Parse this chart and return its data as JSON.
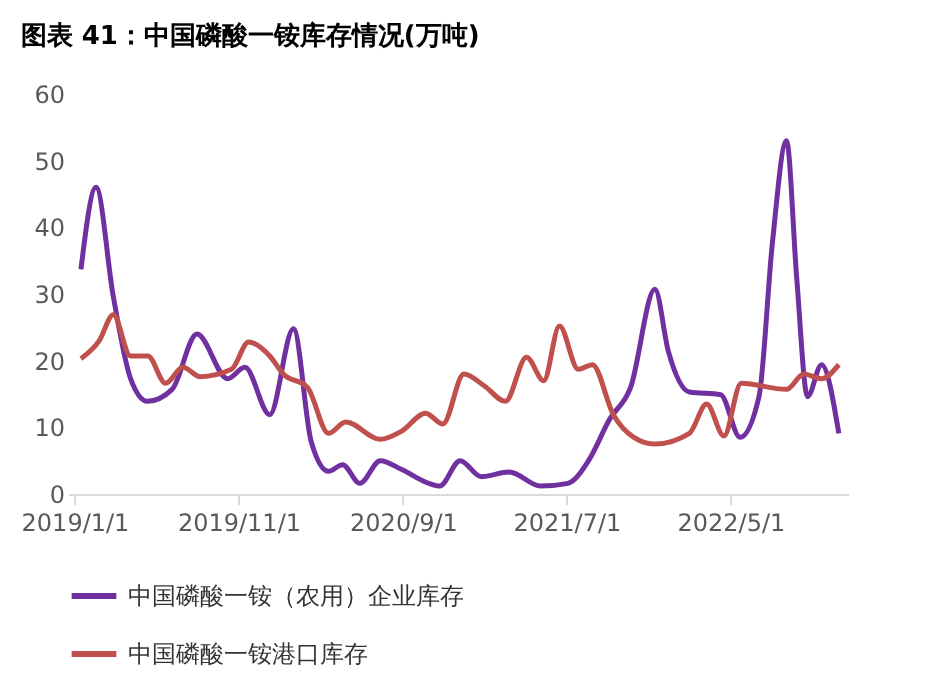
{
  "chart_data": {
    "type": "line",
    "title": "图表 41：中国磷酸一铵库存情况(万吨)",
    "xlim": [
      "2018-12-20",
      "2022-12-05"
    ],
    "xticks": [
      {
        "value": "2019-01-01",
        "label": "2019/1/1"
      },
      {
        "value": "2019-11-01",
        "label": "2019/11/1"
      },
      {
        "value": "2020-09-01",
        "label": "2020/9/1"
      },
      {
        "value": "2021-07-01",
        "label": "2021/7/1"
      },
      {
        "value": "2022-05-01",
        "label": "2022/5/1"
      }
    ],
    "ylim": [
      0,
      60
    ],
    "yticks": [
      0,
      10,
      20,
      30,
      40,
      50,
      60
    ],
    "grid": false,
    "legend": "bottom",
    "line_style": "solid",
    "series": [
      {
        "name": "中国磷酸一铵（农用）企业库存",
        "color": "#7030a0",
        "x": [
          "2019-01-13",
          "2019-02-10",
          "2019-03-14",
          "2019-04-15",
          "2019-05-16",
          "2019-07-01",
          "2019-08-16",
          "2019-10-12",
          "2019-11-13",
          "2019-12-29",
          "2020-02-11",
          "2020-03-15",
          "2020-04-16",
          "2020-05-12",
          "2020-06-13",
          "2020-07-21",
          "2020-08-29",
          "2020-10-19",
          "2020-11-08",
          "2020-12-16",
          "2021-01-24",
          "2021-03-17",
          "2021-05-14",
          "2021-07-04",
          "2021-08-11",
          "2021-09-19",
          "2021-10-28",
          "2021-12-12",
          "2022-01-06",
          "2022-02-14",
          "2022-04-13",
          "2022-05-19",
          "2022-06-23",
          "2022-07-18",
          "2022-08-13",
          "2022-09-01",
          "2022-09-21",
          "2022-10-17",
          "2022-11-18"
        ],
        "values": [
          33.7,
          46,
          29.6,
          17.3,
          13.9,
          15.7,
          24,
          17.3,
          19,
          11.9,
          24.8,
          7.8,
          3.4,
          4.4,
          1.6,
          5,
          3.7,
          1.6,
          1.2,
          5,
          2.6,
          3.3,
          1.2,
          1.6,
          5,
          11.2,
          16,
          30.7,
          21.4,
          15.3,
          14.9,
          8.5,
          14.6,
          37.8,
          53,
          32.3,
          14.6,
          19.4,
          9.1
        ]
      },
      {
        "name": "中国磷酸一铵港口库存",
        "color": "#c0504d",
        "x": [
          "2019-01-13",
          "2019-02-16",
          "2019-03-14",
          "2019-04-15",
          "2019-05-17",
          "2019-06-19",
          "2019-07-21",
          "2019-08-22",
          "2019-10-19",
          "2019-11-20",
          "2019-12-29",
          "2020-01-23",
          "2020-03-08",
          "2020-04-16",
          "2020-05-18",
          "2020-07-21",
          "2020-08-29",
          "2020-10-13",
          "2020-11-14",
          "2020-12-23",
          "2021-01-30",
          "2021-03-10",
          "2021-04-18",
          "2021-05-20",
          "2021-06-18",
          "2021-07-23",
          "2021-08-18",
          "2021-09-26",
          "2021-11-03",
          "2021-12-12",
          "2022-02-14",
          "2022-03-18",
          "2022-04-19",
          "2022-05-21",
          "2022-08-13",
          "2022-09-14",
          "2022-10-17",
          "2022-11-18"
        ],
        "values": [
          20.3,
          23,
          26.9,
          20.7,
          20.7,
          16.6,
          19,
          17.6,
          18.7,
          22.8,
          20.7,
          18,
          16,
          9.1,
          10.8,
          8.2,
          9.4,
          12.1,
          10.5,
          18,
          16.2,
          13.9,
          20.5,
          17,
          25.2,
          18.7,
          19.4,
          11.9,
          8.5,
          7.5,
          9.1,
          13.5,
          8.7,
          16.6,
          15.7,
          18,
          17.3,
          19.4
        ]
      }
    ]
  }
}
